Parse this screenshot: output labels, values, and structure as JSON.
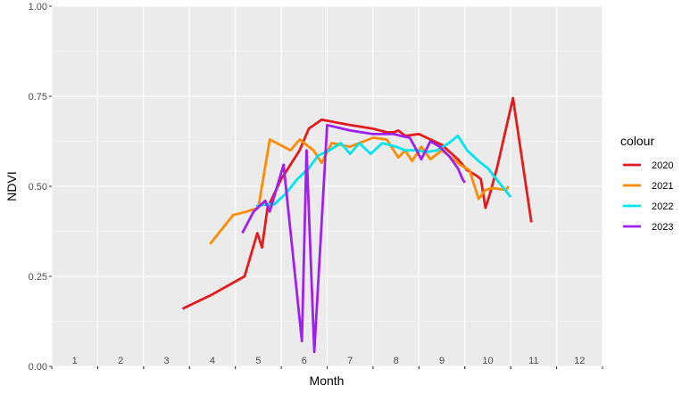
{
  "chart_data": {
    "type": "line",
    "xlabel": "Month",
    "ylabel": "NDVI",
    "ylim": [
      0,
      1
    ],
    "xlim": [
      0.5,
      12.5
    ],
    "y_ticks": [
      "0.00",
      "0.25",
      "0.50",
      "0.75",
      "1.00"
    ],
    "x_ticks": [
      "1",
      "2",
      "3",
      "4",
      "5",
      "6",
      "7",
      "8",
      "9",
      "10",
      "11",
      "12"
    ],
    "grid": true,
    "legend": {
      "title": "colour",
      "position": "right"
    },
    "series": [
      {
        "name": "2020",
        "color": "#e41a1c",
        "x": [
          3.35,
          4.0,
          4.7,
          4.98,
          5.08,
          5.2,
          5.5,
          5.9,
          6.1,
          6.38,
          7.0,
          7.5,
          7.8,
          7.95,
          8.05,
          8.2,
          8.5,
          9.0,
          9.35,
          9.55,
          9.75,
          9.85,
          9.95,
          10.05,
          10.2,
          10.55,
          10.95
        ],
        "y": [
          0.16,
          0.2,
          0.25,
          0.37,
          0.33,
          0.44,
          0.52,
          0.6,
          0.66,
          0.685,
          0.67,
          0.66,
          0.65,
          0.65,
          0.655,
          0.64,
          0.645,
          0.615,
          0.575,
          0.545,
          0.53,
          0.52,
          0.44,
          0.48,
          0.55,
          0.745,
          0.4
        ]
      },
      {
        "name": "2021",
        "color": "#ff8c00",
        "x": [
          3.95,
          4.45,
          4.75,
          5.0,
          5.25,
          5.7,
          5.9,
          6.2,
          6.38,
          6.6,
          7.0,
          7.5,
          7.8,
          8.05,
          8.2,
          8.35,
          8.55,
          8.75,
          9.0,
          9.2,
          9.4,
          9.6,
          9.8,
          9.95,
          10.1,
          10.4,
          10.45
        ],
        "y": [
          0.34,
          0.42,
          0.43,
          0.44,
          0.63,
          0.6,
          0.63,
          0.6,
          0.565,
          0.62,
          0.61,
          0.635,
          0.63,
          0.58,
          0.6,
          0.57,
          0.61,
          0.575,
          0.6,
          0.58,
          0.56,
          0.545,
          0.465,
          0.49,
          0.495,
          0.49,
          0.5
        ]
      },
      {
        "name": "2022",
        "color": "#00e5ee",
        "x": [
          4.95,
          5.2,
          5.35,
          5.6,
          5.85,
          6.1,
          6.3,
          6.55,
          6.8,
          7.0,
          7.2,
          7.45,
          7.7,
          8.0,
          8.2,
          8.45,
          8.65,
          8.9,
          9.15,
          9.35,
          9.55,
          9.8,
          10.0,
          10.25,
          10.5
        ],
        "y": [
          0.445,
          0.45,
          0.45,
          0.48,
          0.52,
          0.55,
          0.585,
          0.6,
          0.62,
          0.59,
          0.62,
          0.59,
          0.62,
          0.61,
          0.6,
          0.6,
          0.595,
          0.6,
          0.62,
          0.64,
          0.6,
          0.57,
          0.55,
          0.51,
          0.47
        ]
      },
      {
        "name": "2023",
        "color": "#a020f0",
        "x": [
          4.65,
          4.9,
          5.15,
          5.25,
          5.55,
          5.95,
          6.05,
          6.22,
          6.5,
          7.0,
          7.5,
          7.95,
          8.1,
          8.3,
          8.45,
          8.55,
          8.75,
          8.95,
          9.15,
          9.35,
          9.45,
          9.5
        ],
        "y": [
          0.37,
          0.43,
          0.46,
          0.43,
          0.56,
          0.07,
          0.6,
          0.04,
          0.67,
          0.655,
          0.645,
          0.645,
          0.64,
          0.635,
          0.6,
          0.575,
          0.625,
          0.61,
          0.585,
          0.55,
          0.52,
          0.51
        ]
      }
    ]
  }
}
